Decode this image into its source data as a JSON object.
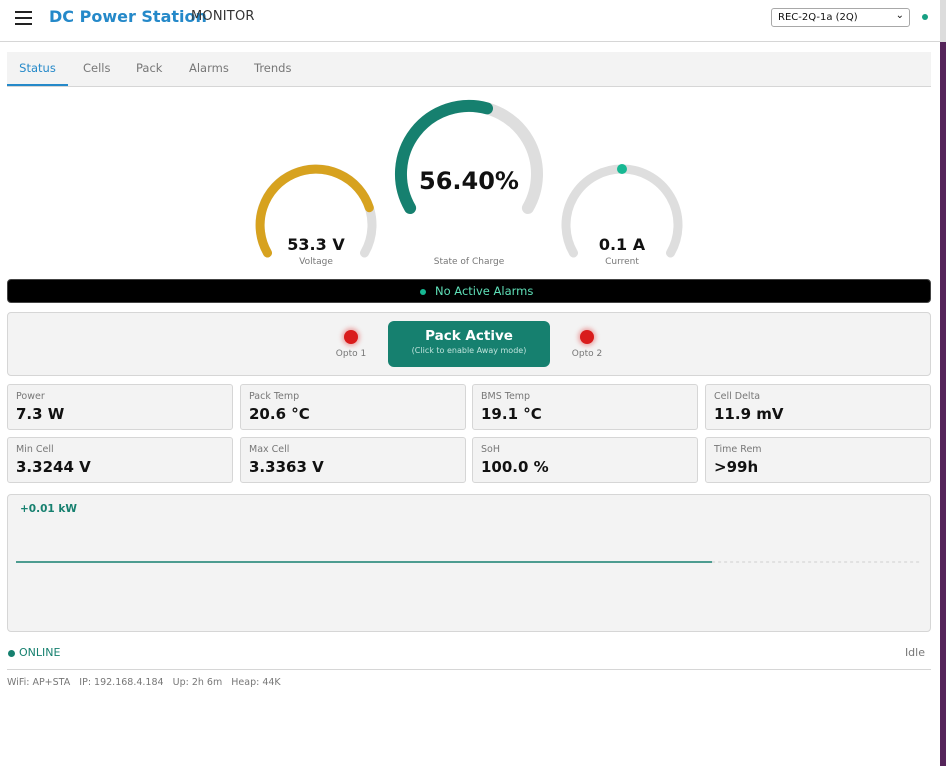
{
  "header": {
    "brand": "DC Power Station",
    "subtitle": "MONITOR",
    "device_selected": "REC-2Q-1a (2Q)",
    "connection_color": "#17a083"
  },
  "tabs": [
    {
      "label": "Status",
      "active": true
    },
    {
      "label": "Cells",
      "active": false
    },
    {
      "label": "Pack",
      "active": false
    },
    {
      "label": "Alarms",
      "active": false
    },
    {
      "label": "Trends",
      "active": false
    }
  ],
  "gauges": {
    "voltage": {
      "value": "53.3 V",
      "label": "Voltage",
      "fill_fraction": 0.8,
      "color": "#d7a21f"
    },
    "soc": {
      "value": "56.40%",
      "label": "State of Charge",
      "fill_fraction": 0.564,
      "color": "#16806f"
    },
    "current": {
      "value": "0.1 A",
      "label": "Current",
      "fill_fraction": 0.5,
      "color": "#17b893"
    }
  },
  "alarms": {
    "text": "No Active Alarms",
    "color": "#5fe0b8"
  },
  "pack": {
    "button_title": "Pack Active",
    "button_subtitle": "(Click to enable Away mode)",
    "opto1_label": "Opto 1",
    "opto2_label": "Opto 2",
    "led_color": "#d91c1c"
  },
  "stats": [
    {
      "label": "Power",
      "value": "7.3 W"
    },
    {
      "label": "Pack Temp",
      "value": "20.6 °C"
    },
    {
      "label": "BMS Temp",
      "value": "19.1 °C"
    },
    {
      "label": "Cell Delta",
      "value": "11.9 mV"
    },
    {
      "label": "Min Cell",
      "value": "3.3244 V"
    },
    {
      "label": "Max Cell",
      "value": "3.3363 V"
    },
    {
      "label": "SoH",
      "value": "100.0 %"
    },
    {
      "label": "Time Rem",
      "value": ">99h"
    }
  ],
  "power_chart": {
    "readout": "+0.01 kW",
    "line_color": "#16806f",
    "history_fraction": 0.77
  },
  "footer": {
    "status": "ONLINE",
    "state": "Idle",
    "info": "WiFi: AP+STA   IP: 192.168.4.184   Up: 2h 6m   Heap: 44K"
  }
}
